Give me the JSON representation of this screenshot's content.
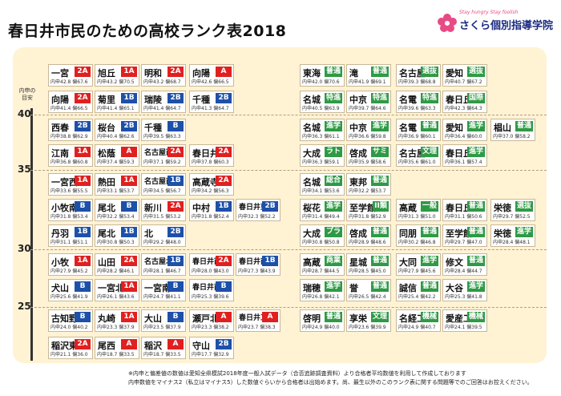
{
  "title": "春日井市民のための高校ランク表2018",
  "logo": {
    "tagline": "Stay hungry Stay foolish",
    "name": "さくら個別指導学院"
  },
  "axis": {
    "label": "内申の\n目安",
    "ticks": [
      "40",
      "35",
      "30",
      "25"
    ]
  },
  "colors": {
    "red": "#e02020",
    "blue": "#1e50a8",
    "green": "#2f9a45"
  },
  "public_left": [
    {
      "name": "一宮",
      "badge": "2A",
      "color": "red",
      "score": "内申42.8 偏67.6"
    },
    {
      "name": "旭丘",
      "badge": "1A",
      "color": "red",
      "score": "内申43.2 偏70.5"
    },
    {
      "name": "明和",
      "badge": "2A",
      "color": "red",
      "score": "内申43.2 偏68.7"
    },
    {
      "name": "向陽",
      "badge": "A",
      "color": "red",
      "score": "内申42.6 偏66.5"
    },
    {
      "name": "向陽",
      "badge": "2A",
      "color": "red",
      "score": "内申41.4 偏66.5"
    },
    {
      "name": "菊里",
      "badge": "1B",
      "color": "blue",
      "score": "内申41.4 偏65.1"
    },
    {
      "name": "瑞陵",
      "badge": "2B",
      "color": "blue",
      "score": "内申41.4 偏64.7"
    },
    {
      "name": "千種",
      "badge": "2B",
      "color": "blue",
      "score": "内申41.3 偏64.7"
    },
    {
      "name": "西春",
      "badge": "2B",
      "color": "blue",
      "score": "内申38.8 偏62.9"
    },
    {
      "name": "桜台",
      "badge": "2B",
      "color": "blue",
      "score": "内申40.4 偏62.6"
    },
    {
      "name": "千種",
      "badge": "B",
      "color": "blue",
      "score": "内申39.5 偏63.3"
    },
    {
      "name": "江南",
      "badge": "1A",
      "color": "red",
      "score": "内申36.8 偏60.8"
    },
    {
      "name": "松蔭",
      "badge": "A",
      "color": "red",
      "score": "内申37.4 偏59.3"
    },
    {
      "name": "名古屋西",
      "badge": "2A",
      "color": "red",
      "score": "内申37.1 偏59.2"
    },
    {
      "name": "春日井",
      "badge": "2A",
      "color": "red",
      "score": "内申37.8 偏60.3"
    },
    {
      "name": "一宮西",
      "badge": "1A",
      "color": "red",
      "score": "内申33.6 偏55.5"
    },
    {
      "name": "熱田",
      "badge": "1A",
      "color": "red",
      "score": "内申33.1 偏53.7"
    },
    {
      "name": "名古屋南",
      "badge": "1B",
      "color": "blue",
      "score": "内申34.5 偏56.7"
    },
    {
      "name": "高蔵寺",
      "badge": "2A",
      "color": "red",
      "score": "内申34.2 偏56.3"
    },
    {
      "name": "小牧南",
      "badge": "B",
      "color": "blue",
      "score": "内申31.8 偏53.4"
    },
    {
      "name": "尾北",
      "badge": "B",
      "color": "blue",
      "score": "内申32.2 偏53.4"
    },
    {
      "name": "新川",
      "badge": "2A",
      "color": "red",
      "score": "内申31.5 偏53.2"
    },
    {
      "name": "中村",
      "badge": "1B",
      "color": "blue",
      "score": "内申31.8 偏52.4"
    },
    {
      "name": "春日井東",
      "badge": "2B",
      "color": "blue",
      "score": "内申32.3 偏52.2"
    },
    {
      "name": "丹羽",
      "badge": "1B",
      "color": "blue",
      "score": "内申31.1 偏51.1"
    },
    {
      "name": "尾北",
      "badge": "1B",
      "color": "blue",
      "score": "内申30.8 偏50.3"
    },
    {
      "name": "北",
      "badge": "2B",
      "color": "blue",
      "score": "内申29.2 偏48.0"
    },
    {
      "name": "小牧",
      "badge": "1A",
      "color": "red",
      "score": "内申27.9 偏45.2"
    },
    {
      "name": "山田",
      "badge": "2A",
      "color": "red",
      "score": "内申28.2 偏46.1"
    },
    {
      "name": "名古屋北",
      "badge": "1B",
      "color": "blue",
      "score": "内申28.1 偏46.7"
    },
    {
      "name": "春日井西",
      "badge": "2A",
      "color": "red",
      "score": "内申28.0 偏43.0"
    },
    {
      "name": "春日井南",
      "badge": "1B",
      "color": "blue",
      "score": "内申27.3 偏43.9"
    },
    {
      "name": "犬山",
      "badge": "B",
      "color": "blue",
      "score": "内申25.6 偏41.9"
    },
    {
      "name": "一宮北",
      "badge": "1A",
      "color": "red",
      "score": "内申26.1 偏43.6"
    },
    {
      "name": "一宮南",
      "badge": "B",
      "color": "blue",
      "score": "内申24.7 偏41.1"
    },
    {
      "name": "春日井南",
      "badge": "B",
      "color": "blue",
      "score": "内申25.3 偏39.6"
    },
    {
      "name": "古知野",
      "badge": "B",
      "color": "blue",
      "score": "内申24.0 偏40.2"
    },
    {
      "name": "丸崎",
      "badge": "1A",
      "color": "red",
      "score": "内申23.3 偏37.9"
    },
    {
      "name": "大山",
      "badge": "B",
      "color": "blue",
      "score": "内申23.5 偏37.9"
    },
    {
      "name": "瀬戸北",
      "badge": "A",
      "color": "red",
      "score": "内申23.3 偏38.2"
    },
    {
      "name": "春日井工",
      "badge": "A",
      "color": "red",
      "score": "内申23.7 偏38.3"
    },
    {
      "name": "稲沢東",
      "badge": "2A",
      "color": "red",
      "score": "内申21.1 偏36.0"
    },
    {
      "name": "尾西",
      "badge": "A",
      "color": "red",
      "score": "内申18.7 偏33.5"
    },
    {
      "name": "稲沢",
      "badge": "A",
      "color": "red",
      "score": "内申18.7 偏33.5"
    },
    {
      "name": "守山",
      "badge": "2B",
      "color": "blue",
      "score": "内申17.7 偏32.9"
    }
  ],
  "private_right": [
    {
      "name": "東海",
      "badge": "普通",
      "score": "内申42.0 偏70.6"
    },
    {
      "name": "滝",
      "badge": "普通",
      "score": "内申41.9 偏69.1"
    },
    {
      "name": "名古屋",
      "badge": "選抜",
      "score": "内申39.3 偏68.8"
    },
    {
      "name": "愛知",
      "badge": "選抜",
      "score": "内申40.7 偏67.2"
    },
    {
      "name": "名城",
      "badge": "特進",
      "score": "内申40.5 偏63.9"
    },
    {
      "name": "中京",
      "badge": "特進",
      "score": "内申39.7 偏64.6"
    },
    {
      "name": "名電",
      "badge": "特進",
      "score": "内申39.6 偏63.3"
    },
    {
      "name": "春日丘",
      "badge": "国際",
      "score": "内申42.3 偏64.3"
    },
    {
      "name": "名城",
      "badge": "進学",
      "score": "内申36.3 偏61.1"
    },
    {
      "name": "中京",
      "badge": "進学",
      "score": "内申36.6 偏59.8"
    },
    {
      "name": "名電",
      "badge": "普通",
      "score": "内申36.9 偏60.1"
    },
    {
      "name": "愛知",
      "badge": "進学",
      "score": "内申36.4 偏60.0"
    },
    {
      "name": "椙山",
      "badge": "普通",
      "score": "内申37.0 偏58.2"
    },
    {
      "name": "大成",
      "badge": "ラト",
      "score": "内申36.3 偏59.1"
    },
    {
      "name": "啓成",
      "badge": "サミ",
      "score": "内申35.9 偏58.6"
    },
    {
      "name": "名古屋",
      "badge": "文理",
      "score": "内申35.6 偏61.0"
    },
    {
      "name": "春日丘",
      "badge": "進学",
      "score": "内申36.1 偏57.4"
    },
    {
      "name": "名城",
      "badge": "総合",
      "score": "内申34.1 偏53.6"
    },
    {
      "name": "東邦",
      "badge": "普通",
      "score": "内申32.2 偏53.7"
    },
    {
      "name": "桜花",
      "badge": "進学",
      "score": "内申31.4 偏49.4"
    },
    {
      "name": "至学館",
      "badge": "II類",
      "score": "内申31.8 偏52.9"
    },
    {
      "name": "高蔵",
      "badge": "一般",
      "score": "内申31.3 偏51.0"
    },
    {
      "name": "春日丘",
      "badge": "普通",
      "score": "内申31.1 偏50.6"
    },
    {
      "name": "栄徳",
      "badge": "選抜",
      "score": "内申29.7 偏52.5"
    },
    {
      "name": "大成",
      "badge": "プラ",
      "score": "内申30.8 偏50.8"
    },
    {
      "name": "啓成",
      "badge": "普通",
      "score": "内申28.9 偏48.6"
    },
    {
      "name": "同朋",
      "badge": "普通",
      "score": "内申30.2 偏46.8"
    },
    {
      "name": "至学館",
      "badge": "普通",
      "score": "内申29.7 偏47.0"
    },
    {
      "name": "栄徳",
      "badge": "進学",
      "score": "内申28.4 偏48.1"
    },
    {
      "name": "高蔵",
      "badge": "商業",
      "score": "内申28.7 偏44.5"
    },
    {
      "name": "星城",
      "badge": "普通",
      "score": "内申28.5 偏45.0"
    },
    {
      "name": "大同",
      "badge": "進学",
      "score": "内申27.9 偏45.6"
    },
    {
      "name": "修文",
      "badge": "普通",
      "score": "内申28.4 偏44.7"
    },
    {
      "name": "瑞穂",
      "badge": "進学",
      "score": "内申26.8 偏42.1"
    },
    {
      "name": "誉",
      "badge": "普通",
      "score": "内申26.5 偏42.4"
    },
    {
      "name": "誠信",
      "badge": "普通",
      "score": "内申25.4 偏42.2"
    },
    {
      "name": "大谷",
      "badge": "進学",
      "score": "内申25.3 偏41.8"
    },
    {
      "name": "啓明",
      "badge": "普通",
      "score": "内申24.9 偏40.0"
    },
    {
      "name": "享栄",
      "badge": "文理",
      "score": "内申23.6 偏39.9"
    },
    {
      "name": "名経工",
      "badge": "機械",
      "score": "内申24.9 偏40.7"
    },
    {
      "name": "愛産工",
      "badge": "機械",
      "score": "内申24.1 偏39.5"
    }
  ],
  "footer": [
    "※内申と偏差値の数値は愛知全県模試2018年度一般入試データ（合否追跡調査資料）より合格者平均数値を利用して作成しております",
    "内申数値をマイナス2（私立はマイナス5）した数値ぐらいから合格者は出始めます。尚、最生以外のこのランク表に関する問題等でのご回答はお控えください。"
  ]
}
